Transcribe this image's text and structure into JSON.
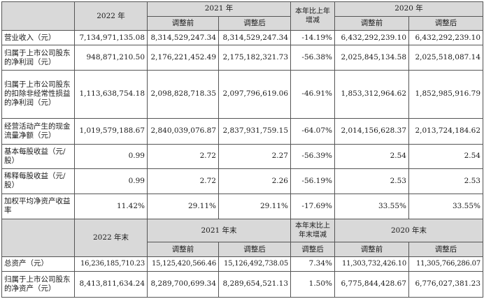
{
  "header1": {
    "year_2022": "2022 年",
    "year_2021": "2021 年",
    "change": "本年比上年增减",
    "year_2020": "2020 年",
    "adj_before": "调整前",
    "adj_after": "调整后"
  },
  "header2": {
    "year_2022": "2022 年末",
    "year_2021": "2021 年末",
    "change": "本年末比上年末增减",
    "year_2020": "2020 年末",
    "adj_before": "调整前",
    "adj_after": "调整后"
  },
  "rows1": [
    {
      "label": "营业收入（元）",
      "v2022": "7,134,971,135.08",
      "v2021b": "8,314,529,247.34",
      "v2021a": "8,314,529,247.34",
      "chg": "-14.19%",
      "v2020b": "6,432,292,239.10",
      "v2020a": "6,432,292,239.10"
    },
    {
      "label": "归属于上市公司股东的净利润（元）",
      "v2022": "948,871,210.50",
      "v2021b": "2,176,221,452.49",
      "v2021a": "2,175,182,321.73",
      "chg": "-56.38%",
      "v2020b": "2,025,845,134.58",
      "v2020a": "2,025,518,087.14"
    },
    {
      "label": "归属于上市公司股东的扣除非经常性损益的净利润（元）",
      "v2022": "1,113,638,754.18",
      "v2021b": "2,098,828,718.35",
      "v2021a": "2,097,796,619.06",
      "chg": "-46.91%",
      "v2020b": "1,853,312,964.62",
      "v2020a": "1,852,985,916.79"
    },
    {
      "label": "经营活动产生的现金流量净额（元）",
      "v2022": "1,019,579,188.67",
      "v2021b": "2,840,039,076.87",
      "v2021a": "2,837,931,759.15",
      "chg": "-64.07%",
      "v2020b": "2,014,156,628.37",
      "v2020a": "2,013,724,184.62"
    },
    {
      "label": "基本每股收益（元/股）",
      "v2022": "0.99",
      "v2021b": "2.72",
      "v2021a": "2.27",
      "chg": "-56.39%",
      "v2020b": "2.54",
      "v2020a": "2.54"
    },
    {
      "label": "稀释每股收益（元/股）",
      "v2022": "0.99",
      "v2021b": "2.72",
      "v2021a": "2.26",
      "chg": "-56.19%",
      "v2020b": "2.53",
      "v2020a": "2.53"
    },
    {
      "label": "加权平均净资产收益率",
      "v2022": "11.42%",
      "v2021b": "29.11%",
      "v2021a": "29.11%",
      "chg": "-17.69%",
      "v2020b": "33.55%",
      "v2020a": "33.55%"
    }
  ],
  "rows2": [
    {
      "label": "总资产（元）",
      "v2022": "16,236,185,710.23",
      "v2021b": "15,125,420,566.46",
      "v2021a": "15,126,492,738.05",
      "chg": "7.34%",
      "v2020b": "11,303,732,426.10",
      "v2020a": "11,305,766,286.07"
    },
    {
      "label": "归属于上市公司股东的净资产（元）",
      "v2022": "8,413,811,634.24",
      "v2021b": "8,289,700,699.34",
      "v2021a": "8,289,654,521.13",
      "chg": "1.50%",
      "v2020b": "6,775,844,428.67",
      "v2020a": "6,776,027,381.23"
    }
  ]
}
